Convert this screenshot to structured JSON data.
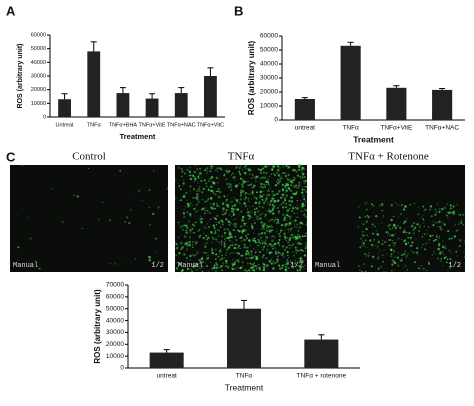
{
  "panels": [
    "A",
    "B",
    "C"
  ],
  "images": [
    {
      "caption": "Control",
      "stamp": "Manual",
      "page": "1/2"
    },
    {
      "caption": "TNFα",
      "stamp": "Manual",
      "page": "1/2"
    },
    {
      "caption": "TNFα + Rotenone",
      "stamp": "Manual",
      "page": "1/2"
    }
  ],
  "chart_data": [
    {
      "type": "bar",
      "y_label": "ROS (arbitrary unit)",
      "x_label": "Treatment",
      "categories": [
        "Untreat",
        "TNFα",
        "TNFα+BHA",
        "TNFα+VitE",
        "TNFα+NAC",
        "TNFα+VitC"
      ],
      "values": [
        13000,
        48000,
        17500,
        13500,
        17500,
        30000
      ],
      "errors": [
        4000,
        7000,
        4000,
        3500,
        4000,
        6000
      ],
      "color": "#222222",
      "ylim": [
        0,
        60000
      ],
      "yticks": [
        0,
        10000,
        20000,
        30000,
        40000,
        50000,
        60000
      ]
    },
    {
      "type": "bar",
      "y_label": "ROS (arbitrary unit)",
      "x_label": "Treatment",
      "categories": [
        "untreat",
        "TNFα",
        "TNFα+VitE",
        "TNFα+NAC"
      ],
      "values": [
        15000,
        53000,
        23000,
        21500
      ],
      "errors": [
        1000,
        2500,
        1500,
        1000
      ],
      "color": "#222222",
      "ylim": [
        0,
        60000
      ],
      "yticks": [
        0,
        10000,
        20000,
        30000,
        40000,
        50000,
        60000
      ]
    },
    {
      "type": "bar",
      "y_label": "ROS (arbitrary unit)",
      "x_label": "Treatment",
      "categories": [
        "untreat",
        "TNFα",
        "TNFα + rotenone"
      ],
      "values": [
        13000,
        50000,
        24000
      ],
      "errors": [
        2500,
        7000,
        4000
      ],
      "color": "#222222",
      "ylim": [
        0,
        70000
      ],
      "yticks": [
        0,
        10000,
        20000,
        30000,
        40000,
        50000,
        60000,
        70000
      ]
    }
  ]
}
